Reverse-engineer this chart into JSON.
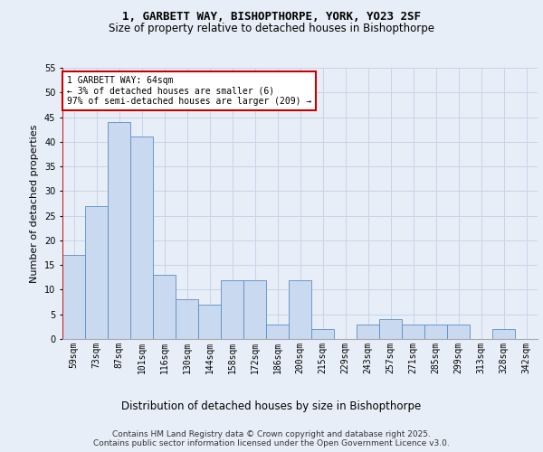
{
  "title1": "1, GARBETT WAY, BISHOPTHORPE, YORK, YO23 2SF",
  "title2": "Size of property relative to detached houses in Bishopthorpe",
  "xlabel": "Distribution of detached houses by size in Bishopthorpe",
  "ylabel": "Number of detached properties",
  "categories": [
    "59sqm",
    "73sqm",
    "87sqm",
    "101sqm",
    "116sqm",
    "130sqm",
    "144sqm",
    "158sqm",
    "172sqm",
    "186sqm",
    "200sqm",
    "215sqm",
    "229sqm",
    "243sqm",
    "257sqm",
    "271sqm",
    "285sqm",
    "299sqm",
    "313sqm",
    "328sqm",
    "342sqm"
  ],
  "values": [
    17,
    27,
    44,
    41,
    13,
    8,
    7,
    12,
    12,
    3,
    12,
    2,
    0,
    3,
    4,
    3,
    3,
    3,
    0,
    2,
    0
  ],
  "bar_color": "#c9d9ef",
  "bar_edge_color": "#5b8ec4",
  "grid_color": "#c8d4e8",
  "annotation_box_edge_color": "#cc0000",
  "annotation_text_line1": "1 GARBETT WAY: 64sqm",
  "annotation_text_line2": "← 3% of detached houses are smaller (6)",
  "annotation_text_line3": "97% of semi-detached houses are larger (209) →",
  "arrow_line_color": "#cc0000",
  "ylim": [
    0,
    55
  ],
  "yticks": [
    0,
    5,
    10,
    15,
    20,
    25,
    30,
    35,
    40,
    45,
    50,
    55
  ],
  "footer": "Contains HM Land Registry data © Crown copyright and database right 2025.\nContains public sector information licensed under the Open Government Licence v3.0.",
  "background_color": "#e8eef7",
  "title1_fontsize": 9,
  "title2_fontsize": 8.5,
  "ylabel_fontsize": 8,
  "xlabel_fontsize": 8.5,
  "tick_fontsize": 7,
  "annotation_fontsize": 7,
  "footer_fontsize": 6.5
}
